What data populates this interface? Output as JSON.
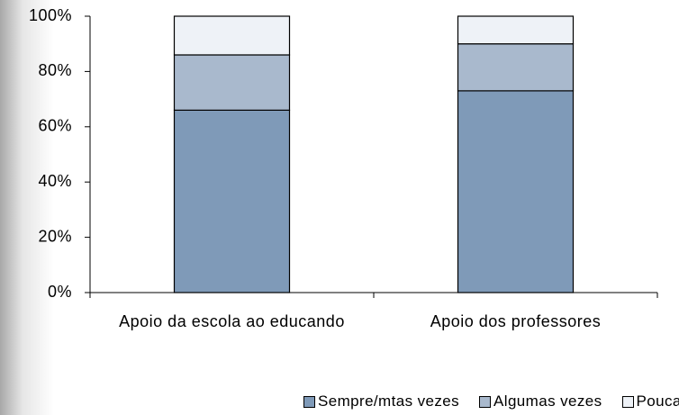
{
  "chart_data": {
    "type": "stacked_bar",
    "categories": [
      "Apoio da escola ao educando",
      "Apoio dos professores"
    ],
    "series": [
      {
        "name": "Sempre/mtas vezes",
        "color": "#7f9ab8",
        "values": [
          66,
          73
        ]
      },
      {
        "name": "Algumas vezes",
        "color": "#a9b9cd",
        "values": [
          20,
          17
        ]
      },
      {
        "name": "Poucas vezes/nunca",
        "color": "#eef2f7",
        "values": [
          14,
          10
        ]
      }
    ],
    "ylim": [
      0,
      100
    ],
    "yticks": [
      {
        "value": 0,
        "label": "0%"
      },
      {
        "value": 20,
        "label": "20%"
      },
      {
        "value": 40,
        "label": "40%"
      },
      {
        "value": 60,
        "label": "60%"
      },
      {
        "value": 80,
        "label": "80%"
      },
      {
        "value": 100,
        "label": "100%"
      }
    ],
    "legend": "bottom"
  }
}
